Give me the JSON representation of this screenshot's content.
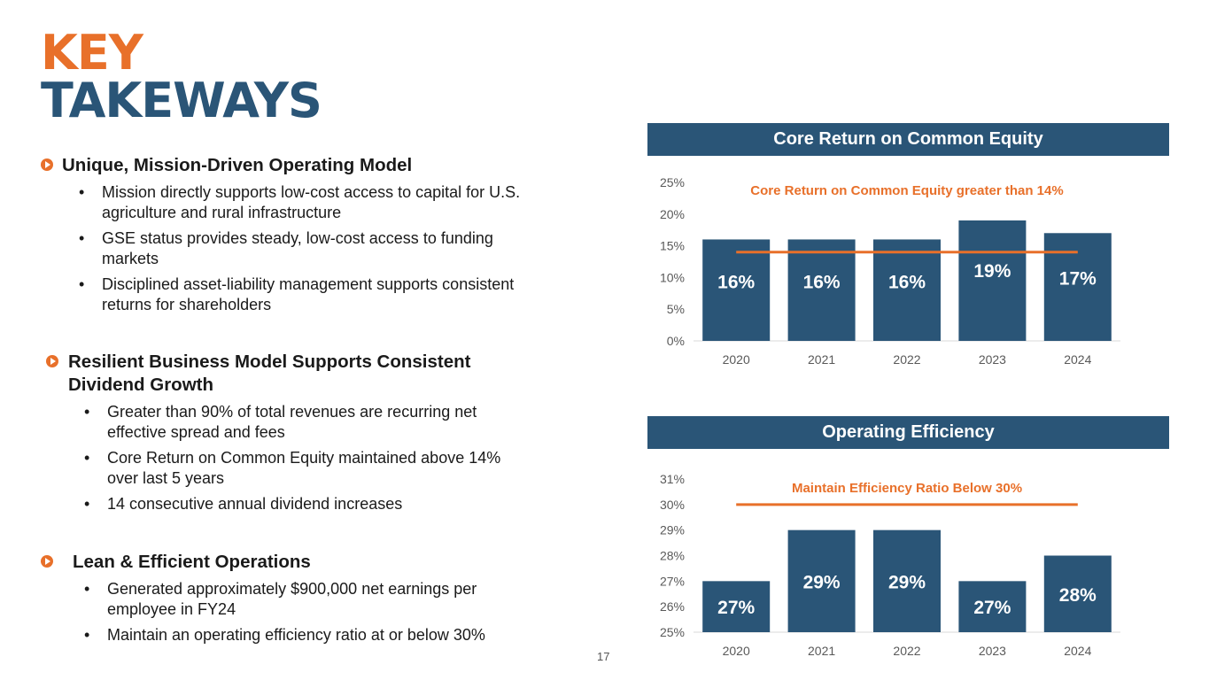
{
  "title": {
    "line1": "KEY",
    "line2": "TAKEWAYS"
  },
  "sections": [
    {
      "title_line1": "Unique, Mission-Driven Operating Model",
      "title_line2": "",
      "bullets": [
        {
          "line1": "Mission directly supports low-cost access to capital for U.S.",
          "line2": "agriculture and rural infrastructure"
        },
        {
          "line1": "GSE status provides steady, low-cost access to funding",
          "line2": "markets"
        },
        {
          "line1": "Disciplined asset-liability management supports consistent",
          "line2": "returns for shareholders"
        }
      ]
    },
    {
      "title_line1": "Resilient Business Model Supports Consistent",
      "title_line2": "Dividend Growth",
      "bullets": [
        {
          "line1": "Greater than 90% of total revenues are recurring net",
          "line2": "effective spread and fees"
        },
        {
          "line1": "Core Return on Common Equity maintained above 14%",
          "line2": "over last 5 years"
        },
        {
          "line1": "14 consecutive annual dividend increases",
          "line2": ""
        }
      ]
    },
    {
      "title_line1": "Lean & Efficient Operations",
      "title_line2": "",
      "bullets": [
        {
          "line1": "Generated approximately $900,000 net earnings per",
          "line2": "employee in FY24"
        },
        {
          "line1": "Maintain an operating efficiency ratio at or below 30%",
          "line2": ""
        }
      ]
    }
  ],
  "page_number": "17",
  "colors": {
    "accent": "#E8702A",
    "navy": "#2A5577",
    "bar": "#2A5577",
    "target_line": "#E8702A"
  },
  "chart_data": [
    {
      "type": "bar",
      "title": "Core Return on Common Equity",
      "annotation": "Core Return on Common Equity greater than 14%",
      "categories": [
        "2020",
        "2021",
        "2022",
        "2023",
        "2024"
      ],
      "values": [
        16,
        16,
        16,
        19,
        17
      ],
      "data_labels": [
        "16%",
        "16%",
        "16%",
        "19%",
        "17%"
      ],
      "target_value": 14,
      "ylim": [
        0,
        25
      ],
      "yticks": [
        0,
        5,
        10,
        15,
        20,
        25
      ],
      "ytick_labels": [
        "0%",
        "5%",
        "10%",
        "15%",
        "20%",
        "25%"
      ],
      "grid": false
    },
    {
      "type": "bar",
      "title": "Operating Efficiency",
      "annotation": "Maintain Efficiency Ratio Below 30%",
      "categories": [
        "2020",
        "2021",
        "2022",
        "2023",
        "2024"
      ],
      "values": [
        27,
        29,
        29,
        27,
        28
      ],
      "data_labels": [
        "27%",
        "29%",
        "29%",
        "27%",
        "28%"
      ],
      "target_value": 30,
      "ylim": [
        25,
        31
      ],
      "yticks": [
        25,
        26,
        27,
        28,
        29,
        30,
        31
      ],
      "ytick_labels": [
        "25%",
        "26%",
        "27%",
        "28%",
        "29%",
        "30%",
        "31%"
      ],
      "grid": false
    }
  ]
}
